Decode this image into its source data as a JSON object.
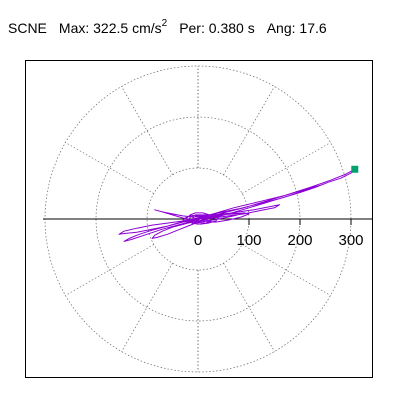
{
  "header": {
    "station": "SCNE",
    "max_label": "Max:",
    "max_value": "322.5 cm/s",
    "max_exp": "2",
    "per_label": "Per:",
    "per_value": "0.380 s",
    "ang_label": "Ang:",
    "ang_value": "17.6"
  },
  "chart_data": {
    "type": "polar-hodogram",
    "units": "cm/s^2",
    "radial_ticks": [
      100,
      200,
      300
    ],
    "radial_tick_labels": [
      "100",
      "200",
      "300"
    ],
    "origin_label": "0",
    "max_radius": 350,
    "angular_grid_step_deg": 30,
    "rings": [
      100,
      200,
      300
    ],
    "grid": true,
    "peak": {
      "amplitude": 322.5,
      "angle_deg": 17.6
    },
    "colors": {
      "trace": "#8c00d4",
      "grid": "#666666",
      "peak_marker": "#00a070",
      "frame": "#000000"
    },
    "trace_points": [
      [
        0,
        0
      ],
      [
        15,
        5
      ],
      [
        40,
        12
      ],
      [
        80,
        20
      ],
      [
        120,
        30
      ],
      [
        160,
        40
      ],
      [
        200,
        52
      ],
      [
        230,
        62
      ],
      [
        255,
        72
      ],
      [
        280,
        80
      ],
      [
        300,
        90
      ],
      [
        307.4,
        97.5
      ],
      [
        290,
        88
      ],
      [
        260,
        76
      ],
      [
        220,
        62
      ],
      [
        170,
        46
      ],
      [
        120,
        34
      ],
      [
        70,
        22
      ],
      [
        30,
        10
      ],
      [
        -10,
        0
      ],
      [
        -40,
        -8
      ],
      [
        -60,
        -14
      ],
      [
        -80,
        -18
      ],
      [
        -100,
        -22
      ],
      [
        -120,
        -26
      ],
      [
        -140,
        -28
      ],
      [
        -155,
        -30
      ],
      [
        -145,
        -24
      ],
      [
        -120,
        -18
      ],
      [
        -90,
        -12
      ],
      [
        -60,
        -8
      ],
      [
        -30,
        -4
      ],
      [
        0,
        2
      ],
      [
        40,
        8
      ],
      [
        80,
        14
      ],
      [
        110,
        18
      ],
      [
        140,
        24
      ],
      [
        160,
        28
      ],
      [
        150,
        22
      ],
      [
        120,
        16
      ],
      [
        90,
        10
      ],
      [
        60,
        6
      ],
      [
        30,
        2
      ],
      [
        0,
        0
      ],
      [
        -30,
        -6
      ],
      [
        -60,
        -14
      ],
      [
        -90,
        -22
      ],
      [
        -115,
        -30
      ],
      [
        -135,
        -38
      ],
      [
        -145,
        -44
      ],
      [
        -130,
        -40
      ],
      [
        -100,
        -30
      ],
      [
        -70,
        -20
      ],
      [
        -40,
        -12
      ],
      [
        -10,
        -4
      ],
      [
        20,
        4
      ],
      [
        50,
        12
      ],
      [
        90,
        22
      ],
      [
        130,
        34
      ],
      [
        170,
        46
      ],
      [
        210,
        58
      ],
      [
        240,
        66
      ],
      [
        215,
        58
      ],
      [
        180,
        46
      ],
      [
        140,
        34
      ],
      [
        100,
        22
      ],
      [
        60,
        10
      ],
      [
        20,
        0
      ],
      [
        -20,
        -8
      ],
      [
        -50,
        -16
      ],
      [
        -70,
        -24
      ],
      [
        -85,
        -32
      ],
      [
        -90,
        -38
      ],
      [
        -80,
        -36
      ],
      [
        -60,
        -30
      ],
      [
        -40,
        -22
      ],
      [
        -20,
        -14
      ],
      [
        0,
        -6
      ],
      [
        20,
        2
      ],
      [
        45,
        8
      ],
      [
        70,
        10
      ],
      [
        90,
        12
      ],
      [
        100,
        10
      ],
      [
        85,
        4
      ],
      [
        60,
        -2
      ],
      [
        35,
        -6
      ],
      [
        10,
        -4
      ],
      [
        -10,
        -2
      ],
      [
        -30,
        2
      ],
      [
        -50,
        8
      ],
      [
        -70,
        14
      ],
      [
        -85,
        18
      ],
      [
        -70,
        14
      ],
      [
        -50,
        10
      ],
      [
        -30,
        6
      ],
      [
        -10,
        4
      ],
      [
        10,
        6
      ],
      [
        30,
        8
      ],
      [
        50,
        10
      ],
      [
        70,
        12
      ],
      [
        85,
        10
      ],
      [
        70,
        6
      ],
      [
        50,
        2
      ],
      [
        30,
        -2
      ],
      [
        10,
        -4
      ],
      [
        -5,
        -6
      ],
      [
        -20,
        -6
      ],
      [
        -30,
        -4
      ],
      [
        -25,
        2
      ],
      [
        -15,
        6
      ],
      [
        0,
        8
      ],
      [
        15,
        8
      ],
      [
        30,
        6
      ],
      [
        40,
        2
      ],
      [
        35,
        -4
      ],
      [
        20,
        -8
      ],
      [
        5,
        -10
      ],
      [
        -10,
        -8
      ],
      [
        -20,
        -4
      ],
      [
        -22,
        2
      ],
      [
        -15,
        8
      ],
      [
        -5,
        12
      ],
      [
        10,
        12
      ],
      [
        22,
        8
      ],
      [
        28,
        2
      ],
      [
        25,
        -4
      ],
      [
        15,
        -8
      ],
      [
        0,
        -10
      ],
      [
        -12,
        -8
      ],
      [
        -18,
        -2
      ],
      [
        -15,
        4
      ],
      [
        -5,
        8
      ],
      [
        8,
        8
      ],
      [
        16,
        4
      ],
      [
        18,
        -2
      ],
      [
        12,
        -6
      ],
      [
        0,
        -7
      ],
      [
        -8,
        -4
      ],
      [
        -10,
        2
      ],
      [
        -4,
        6
      ],
      [
        6,
        6
      ],
      [
        10,
        2
      ],
      [
        8,
        -3
      ],
      [
        0,
        -4
      ],
      [
        -4,
        0
      ],
      [
        0,
        3
      ],
      [
        3,
        1
      ]
    ]
  }
}
